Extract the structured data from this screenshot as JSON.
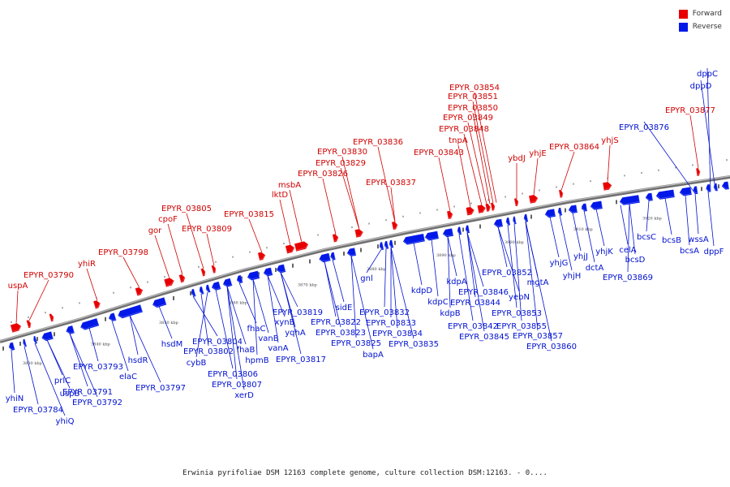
{
  "colors": {
    "forward": "#e80000",
    "reverse": "#0018e8",
    "backbone": "#777777"
  },
  "legend": [
    {
      "key": "forward",
      "label": "Forward"
    },
    {
      "key": "reverse",
      "label": "Reverse"
    }
  ],
  "caption": "Erwinia pyrifoliae DSM 12163 complete genome, culture collection DSM:12163. - 0....",
  "ruler": {
    "unit": "kbp",
    "ticks": [
      "3830 kbp",
      "3840 kbp",
      "3850 kbp",
      "3860 kbp",
      "3870 kbp",
      "3880 kbp",
      "3890 kbp",
      "3900 kbp",
      "3910 kbp",
      "3920 kbp"
    ]
  },
  "forward_genes": [
    "uspA",
    "EPYR_03790",
    "yhiR",
    "EPYR_03798",
    "gor",
    "cpoF",
    "EPYR_03805",
    "EPYR_03809",
    "EPYR_03815",
    "lktD",
    "msbA",
    "EPYR_03826",
    "EPYR_03829",
    "EPYR_03830",
    "EPYR_03836",
    "EPYR_03837",
    "EPYR_03843",
    "tnpA",
    "EPYR_03848",
    "EPYR_03849",
    "EPYR_03850",
    "EPYR_03851",
    "EPYR_03854",
    "ybdJ",
    "yhjE",
    "EPYR_03864",
    "yhjS",
    "EPYR_03877"
  ],
  "reverse_genes": [
    "yhiN",
    "EPYR_03784",
    "yhiQ",
    "uspB",
    "prlC",
    "EPYR_03791",
    "EPYR_03792",
    "EPYR_03793",
    "elaC",
    "hsdR",
    "EPYR_03797",
    "hsdM",
    "EPYR_03804",
    "EPYR_03802",
    "cybB",
    "EPYR_03806",
    "EPYR_03807",
    "xerD",
    "fhaB",
    "fhaC",
    "vanB",
    "hpmB",
    "xynB",
    "vanA",
    "EPYR_03817",
    "EPYR_03819",
    "yqhA",
    "EPYR_03822",
    "EPYR_03823",
    "sidE",
    "EPYR_03825",
    "bapA",
    "gnl",
    "EPYR_03832",
    "EPYR_03833",
    "EPYR_03834",
    "EPYR_03835",
    "kdpD",
    "kdpC",
    "kdpB",
    "kdpA",
    "EPYR_03842",
    "EPYR_03844",
    "EPYR_03845",
    "EPYR_03846",
    "EPYR_03852",
    "yebN",
    "EPYR_03853",
    "EPYR_03855",
    "mgtA",
    "EPYR_03857",
    "EPYR_03860",
    "yhjG",
    "yhjH",
    "yhjJ",
    "dctA",
    "yhjK",
    "celA",
    "bcsD",
    "EPYR_03869",
    "bcsC",
    "bcsB",
    "bcsA",
    "wssA",
    "dppF",
    "EPYR_03876",
    "dppC",
    "dppD"
  ]
}
